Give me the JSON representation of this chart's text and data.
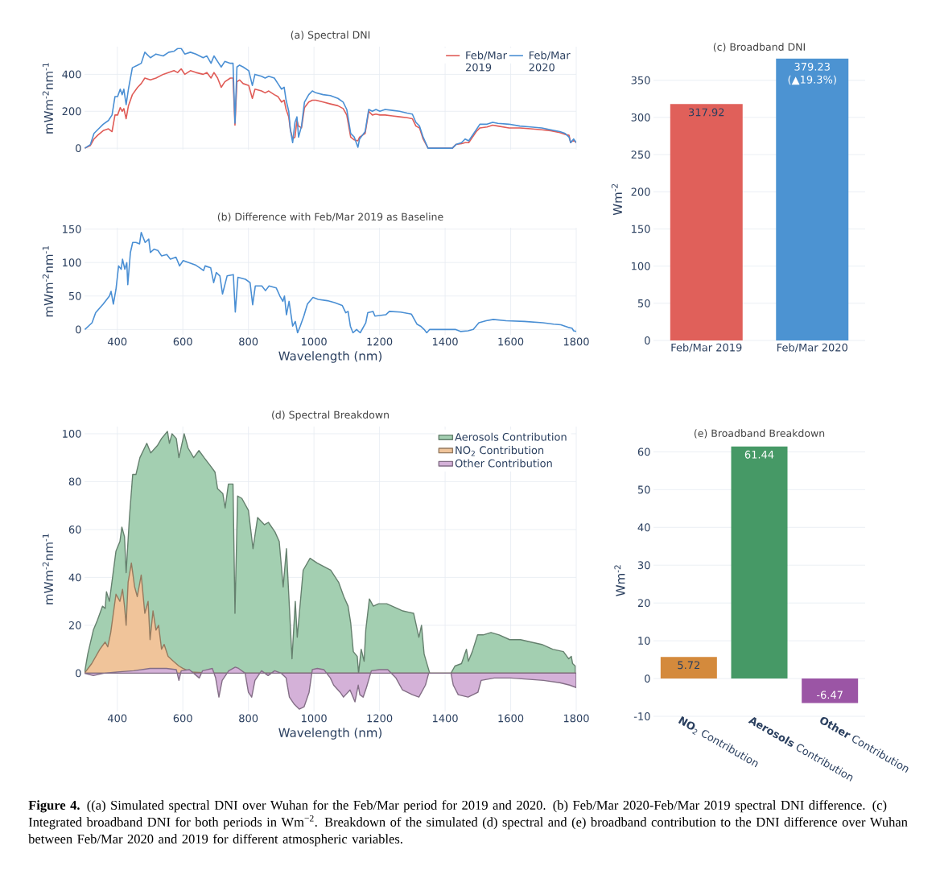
{
  "chart_data": [
    {
      "type": "line",
      "title": "(a) Spectral DNI",
      "ylabel": "mWm$^{-2}$nm$^{-1}$",
      "x": [
        301,
        318,
        329,
        340,
        357,
        373,
        384,
        393,
        401,
        409,
        415,
        420,
        427,
        434,
        446,
        462,
        473,
        484,
        501,
        518,
        540,
        557,
        573,
        584,
        595,
        606,
        623,
        640,
        662,
        673,
        686,
        695,
        706,
        717,
        728,
        745,
        753,
        759,
        765,
        773,
        784,
        801,
        812,
        820,
        840,
        851,
        862,
        879,
        890,
        901,
        909,
        915,
        923,
        928,
        935,
        942,
        948,
        953,
        962,
        971,
        984,
        995,
        1006,
        1028,
        1050,
        1073,
        1089,
        1100,
        1112,
        1123,
        1134,
        1139,
        1156,
        1167,
        1178,
        1189,
        1201,
        1217,
        1239,
        1261,
        1284,
        1300,
        1311,
        1322,
        1333,
        1348,
        1372,
        1422,
        1433,
        1450,
        1461,
        1472,
        1495,
        1506,
        1528,
        1545,
        1561,
        1595,
        1628,
        1661,
        1695,
        1722,
        1750,
        1766,
        1778,
        1783,
        1792,
        1800
      ],
      "series": [
        {
          "name": "Feb/Mar 2019",
          "color": "#e05c57",
          "values": [
            0,
            15,
            50,
            70,
            95,
            105,
            90,
            180,
            180,
            220,
            200,
            215,
            160,
            230,
            290,
            330,
            350,
            380,
            370,
            380,
            400,
            410,
            420,
            410,
            430,
            400,
            420,
            410,
            400,
            410,
            380,
            410,
            380,
            330,
            360,
            380,
            380,
            125,
            360,
            370,
            350,
            340,
            270,
            320,
            310,
            300,
            310,
            290,
            280,
            250,
            260,
            210,
            170,
            100,
            50,
            60,
            150,
            120,
            110,
            220,
            250,
            260,
            260,
            250,
            240,
            230,
            215,
            180,
            60,
            45,
            40,
            60,
            80,
            200,
            180,
            185,
            180,
            180,
            175,
            170,
            165,
            160,
            120,
            110,
            50,
            0,
            0,
            0,
            20,
            25,
            30,
            30,
            90,
            110,
            115,
            125,
            120,
            110,
            110,
            105,
            100,
            95,
            85,
            75,
            70,
            30,
            45,
            30
          ]
        },
        {
          "name": "Feb/Mar 2020",
          "color": "#4a8fd4",
          "values": [
            0,
            20,
            80,
            100,
            130,
            150,
            180,
            280,
            280,
            320,
            290,
            320,
            236,
            320,
            436,
            450,
            460,
            520,
            490,
            510,
            500,
            520,
            525,
            540,
            540,
            510,
            520,
            510,
            490,
            500,
            460,
            500,
            470,
            440,
            470,
            460,
            460,
            136,
            440,
            450,
            440,
            420,
            340,
            400,
            390,
            380,
            390,
            380,
            350,
            320,
            330,
            260,
            200,
            100,
            30,
            140,
            170,
            60,
            120,
            250,
            290,
            310,
            300,
            290,
            285,
            270,
            250,
            210,
            80,
            60,
            5,
            50,
            90,
            210,
            200,
            210,
            200,
            210,
            205,
            200,
            190,
            185,
            140,
            120,
            60,
            0,
            0,
            0,
            20,
            30,
            50,
            40,
            100,
            130,
            130,
            140,
            135,
            130,
            120,
            115,
            110,
            100,
            90,
            80,
            60,
            30,
            50,
            30
          ]
        }
      ],
      "xlim": [
        300,
        1800
      ],
      "xticks": [
        400,
        600,
        800,
        1000,
        1200,
        1400,
        1600,
        1800
      ],
      "ylim": [
        -8,
        550
      ],
      "yticks": [
        0,
        200,
        400
      ],
      "tick_labels": "y",
      "grid": true,
      "legend": "top right",
      "annotations": [
        "**Figure 4.** ((a) Simulated spectral DNI over Wuhan for the Feb/Mar period for 2019 and 2020. (b) Feb/Mar 2020-Feb/Mar 2019 spectral DNI difference. (c) Integrated broadband DNI for both periods in Wm$^{−2}$. Breakdown of the simulated (d) spectral and (e) broadband contribution to the DNI difference over Wuhan between Feb/Mar 2020 and 2019 for different atmospheric variables."
      ]
    },
    {
      "type": "line",
      "title": "(b) Difference with Feb/Mar 2019 as Baseline",
      "xlabel": "Wavelength (nm)",
      "ylabel": "mWm$^{-2}$nm$^{-1}$",
      "series": [
        {
          "color": "#4a8fd4",
          "x": [
            301,
            323,
            334,
            357,
            368,
            376,
            381,
            388,
            396,
            404,
            412,
            416,
            423,
            429,
            432,
            440,
            447,
            457,
            468,
            473,
            485,
            496,
            501,
            512,
            524,
            535,
            551,
            562,
            579,
            590,
            601,
            618,
            640,
            652,
            663,
            668,
            685,
            694,
            702,
            713,
            721,
            735,
            754,
            760,
            768,
            791,
            805,
            813,
            821,
            841,
            852,
            863,
            885,
            896,
            905,
            910,
            916,
            924,
            935,
            943,
            950,
            958,
            969,
            980,
            997,
            1013,
            1041,
            1063,
            1086,
            1097,
            1104,
            1111,
            1119,
            1130,
            1141,
            1158,
            1164,
            1180,
            1186,
            1219,
            1230,
            1264,
            1297,
            1314,
            1325,
            1336,
            1344,
            1353,
            1431,
            1447,
            1470,
            1486,
            1503,
            1525,
            1547,
            1586,
            1642,
            1698,
            1731,
            1753,
            1776,
            1787,
            1792,
            1800
          ],
          "values": [
            0,
            10,
            25,
            38,
            45,
            50,
            57,
            38,
            60,
            95,
            90,
            105,
            90,
            100,
            67,
            115,
            130,
            130,
            128,
            145,
            130,
            135,
            115,
            120,
            118,
            110,
            112,
            105,
            108,
            95,
            103,
            100,
            96,
            92,
            88,
            95,
            92,
            70,
            85,
            80,
            53,
            80,
            82,
            26,
            78,
            75,
            70,
            37,
            65,
            65,
            58,
            65,
            62,
            50,
            42,
            50,
            22,
            42,
            5,
            12,
            -5,
            5,
            20,
            38,
            48,
            45,
            43,
            40,
            36,
            25,
            27,
            5,
            -5,
            0,
            -5,
            10,
            25,
            27,
            20,
            22,
            27,
            26,
            23,
            8,
            5,
            0,
            -5,
            0,
            0,
            -3,
            -2,
            0,
            10,
            13,
            15,
            13,
            12,
            10,
            8,
            7,
            3,
            2,
            -2,
            -3
          ]
        }
      ],
      "xlim": [
        300,
        1800
      ],
      "xticks": [
        400,
        600,
        800,
        1000,
        1200,
        1400,
        1600,
        1800
      ],
      "ylim": [
        -8,
        152
      ],
      "yticks": [
        0,
        50,
        100,
        150
      ],
      "grid": true
    },
    {
      "type": "bar",
      "title": "(c) Broadband DNI",
      "ylabel": "Wm$^{-2}$",
      "categories": [
        "Feb/Mar 2019",
        "Feb/Mar 2020"
      ],
      "values": [
        317.92,
        379.23
      ],
      "colors": [
        "#e0605a",
        "#4c93d2"
      ],
      "value_labels": [
        "317.92",
        "379.23 (▲19.3%)"
      ],
      "ylim": [
        0,
        380
      ],
      "yticks": [
        0,
        50,
        100,
        150,
        200,
        250,
        300,
        350
      ],
      "grid": "y"
    },
    {
      "type": "area",
      "title": "(d) Spectral Breakdown",
      "xlabel": "Wavelength (nm)",
      "ylabel": "mWm$^{-2}$nm$^{-1}$",
      "series": [
        {
          "name": "Aerosols Contribution",
          "color": "#a3cfb1",
          "x": [
            300,
            310,
            327,
            339,
            355,
            363,
            367,
            376,
            396,
            408,
            414,
            422,
            427,
            437,
            447,
            457,
            469,
            490,
            502,
            522,
            535,
            553,
            559,
            567,
            580,
            588,
            604,
            616,
            633,
            649,
            665,
            682,
            698,
            706,
            722,
            729,
            739,
            753,
            759,
            767,
            780,
            800,
            814,
            828,
            849,
            861,
            881,
            894,
            906,
            916,
            933,
            943,
            949,
            967,
            988,
            1010,
            1051,
            1075,
            1091,
            1104,
            1112,
            1120,
            1132,
            1136,
            1144,
            1153,
            1158,
            1169,
            1181,
            1197,
            1222,
            1255,
            1271,
            1304,
            1312,
            1320,
            1328,
            1336,
            1353,
            1418,
            1430,
            1450,
            1465,
            1471,
            1483,
            1499,
            1516,
            1540,
            1565,
            1597,
            1630,
            1662,
            1695,
            1728,
            1761,
            1777,
            1785,
            1789,
            1797
          ],
          "values": [
            0,
            8,
            18,
            22,
            28,
            27,
            34,
            30,
            51,
            55,
            61,
            57,
            42,
            65,
            83,
            83,
            90,
            96,
            92,
            95,
            98,
            101,
            96,
            100,
            98,
            90,
            100,
            94,
            90,
            93,
            90,
            87,
            84,
            77,
            75,
            69,
            79,
            79,
            25,
            74,
            73,
            68,
            52,
            65,
            62,
            63,
            59,
            55,
            36,
            52,
            6,
            30,
            15,
            43,
            48,
            46,
            43,
            38,
            32,
            28,
            21,
            9,
            7,
            0,
            10,
            5,
            18,
            31,
            28,
            29,
            29,
            27,
            26,
            25,
            20,
            15,
            20,
            8,
            0,
            0,
            3,
            4,
            10,
            5,
            9,
            16,
            16,
            17,
            16,
            14,
            14,
            13,
            12,
            10,
            9,
            6,
            7,
            4,
            3
          ]
        },
        {
          "name": "NO$_{2}$ Contribution",
          "color": "#f0c49a",
          "x": [
            300,
            322,
            347,
            363,
            371,
            380,
            396,
            408,
            416,
            422,
            427,
            433,
            443,
            453,
            461,
            473,
            484,
            494,
            500,
            509,
            518,
            526,
            535,
            543,
            555,
            571,
            588,
            600,
            624,
            700,
            1800
          ],
          "values": [
            0,
            4,
            10,
            13,
            11,
            17,
            33,
            30,
            35,
            28,
            20,
            38,
            46,
            36,
            32,
            41,
            25,
            30,
            14,
            26,
            18,
            20,
            10,
            12,
            7,
            5,
            3,
            2,
            0.5,
            0,
            0
          ]
        },
        {
          "name": "Other Contribution",
          "color": "#d4b1d8",
          "x": [
            300,
            327,
            360,
            400,
            450,
            500,
            550,
            580,
            588,
            595,
            620,
            650,
            660,
            690,
            700,
            710,
            720,
            740,
            760,
            770,
            790,
            800,
            810,
            820,
            840,
            860,
            880,
            900,
            915,
            925,
            940,
            955,
            970,
            985,
            995,
            1010,
            1030,
            1050,
            1060,
            1080,
            1090,
            1110,
            1125,
            1135,
            1140,
            1150,
            1160,
            1175,
            1200,
            1225,
            1250,
            1270,
            1300,
            1320,
            1340,
            1350,
            1418,
            1425,
            1440,
            1470,
            1500,
            1510,
            1550,
            1600,
            1650,
            1700,
            1750,
            1780,
            1800
          ],
          "values": [
            0,
            -1,
            0,
            0.5,
            1,
            2,
            2,
            1.5,
            -3,
            1,
            1.5,
            -2,
            1,
            2,
            -2,
            -10,
            -3,
            1,
            2.5,
            2,
            0,
            -8,
            -10,
            -3,
            1,
            -1,
            1,
            0,
            -2,
            -10,
            -13,
            -15,
            -14,
            -8,
            1.5,
            2,
            1.5,
            -2,
            -5,
            -8,
            -10,
            -7,
            -12,
            -5,
            -9,
            -10,
            -6,
            1,
            1.5,
            1.5,
            -2,
            -7,
            -9,
            -10,
            -5,
            0,
            0,
            -5,
            -9,
            -10,
            -8,
            -3,
            -2,
            -2,
            -2.5,
            -3,
            -4,
            -5,
            -6
          ]
        }
      ],
      "xlim": [
        300,
        1800
      ],
      "xticks": [
        400,
        600,
        800,
        1000,
        1200,
        1400,
        1600,
        1800
      ],
      "ylim": [
        -16,
        103
      ],
      "yticks": [
        0,
        20,
        40,
        60,
        80,
        100
      ],
      "grid": true,
      "legend": "top right"
    },
    {
      "type": "bar",
      "title": "(e) Broadband Breakdown",
      "ylabel": "Wm$^{-2}$",
      "categories": [
        "**NO**$_{2}$ Contribution",
        "**Aerosols** Contribution",
        "**Other** Contribution"
      ],
      "values": [
        5.72,
        61.44,
        -6.47
      ],
      "colors": [
        "#d48a3c",
        "#469966",
        "#9b55a5"
      ],
      "value_labels": [
        "5.72",
        "61.44",
        "-6.47"
      ],
      "ylim": [
        -10,
        62
      ],
      "yticks": [
        -10,
        0,
        10,
        20,
        30,
        40,
        50,
        60
      ],
      "grid": "y"
    }
  ]
}
